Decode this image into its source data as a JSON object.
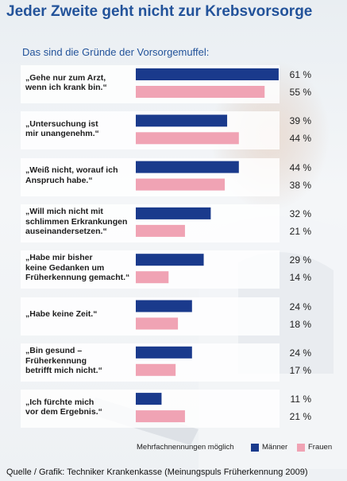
{
  "title": "Jeder Zweite geht nicht zur Krebsvorsorge",
  "subtitle": "Das sind die Gründe der Vorsorgemuffel:",
  "legend_note": "Mehrfachnennungen möglich",
  "source": "Quelle / Grafik: Techniker Krankenkasse (Meinungspuls Früherkennung 2009)",
  "colors": {
    "maenner": "#1a3a8c",
    "frauen": "#f0a3b4",
    "title": "#23539a"
  },
  "chart_data": {
    "type": "bar",
    "orientation": "horizontal",
    "unit": "%",
    "categories": [
      [
        "„Gehe nur zum Arzt,",
        "wenn ich krank bin.“"
      ],
      [
        "„Untersuchung ist",
        "mir unangenehm.“"
      ],
      [
        "„Weiß nicht, worauf ich",
        "Anspruch habe.“"
      ],
      [
        "„Will mich nicht mit",
        "schlimmen Erkrankungen",
        "auseinandersetzen.“"
      ],
      [
        "„Habe mir bisher",
        "keine Gedanken um",
        "Früherkennung gemacht.“"
      ],
      [
        "„Habe keine Zeit.“"
      ],
      [
        "„Bin gesund –",
        "Früherkennung",
        "betrifft mich nicht.“"
      ],
      [
        "„Ich fürchte mich",
        "vor dem Ergebnis.“"
      ]
    ],
    "series": [
      {
        "name": "Männer",
        "values": [
          61,
          39,
          44,
          32,
          29,
          24,
          24,
          11
        ],
        "labels": [
          "61 %",
          "39 %",
          "44 %",
          "32 %",
          "29 %",
          "24 %",
          "24 %",
          "11 %"
        ]
      },
      {
        "name": "Frauen",
        "values": [
          55,
          44,
          38,
          21,
          14,
          18,
          17,
          21
        ],
        "labels": [
          "55 %",
          "44 %",
          "38 %",
          "21 %",
          "14 %",
          "18 %",
          "17 %",
          "21 %"
        ]
      }
    ],
    "xlim": [
      0,
      100
    ],
    "legend": "bottom-right",
    "grid": false
  }
}
